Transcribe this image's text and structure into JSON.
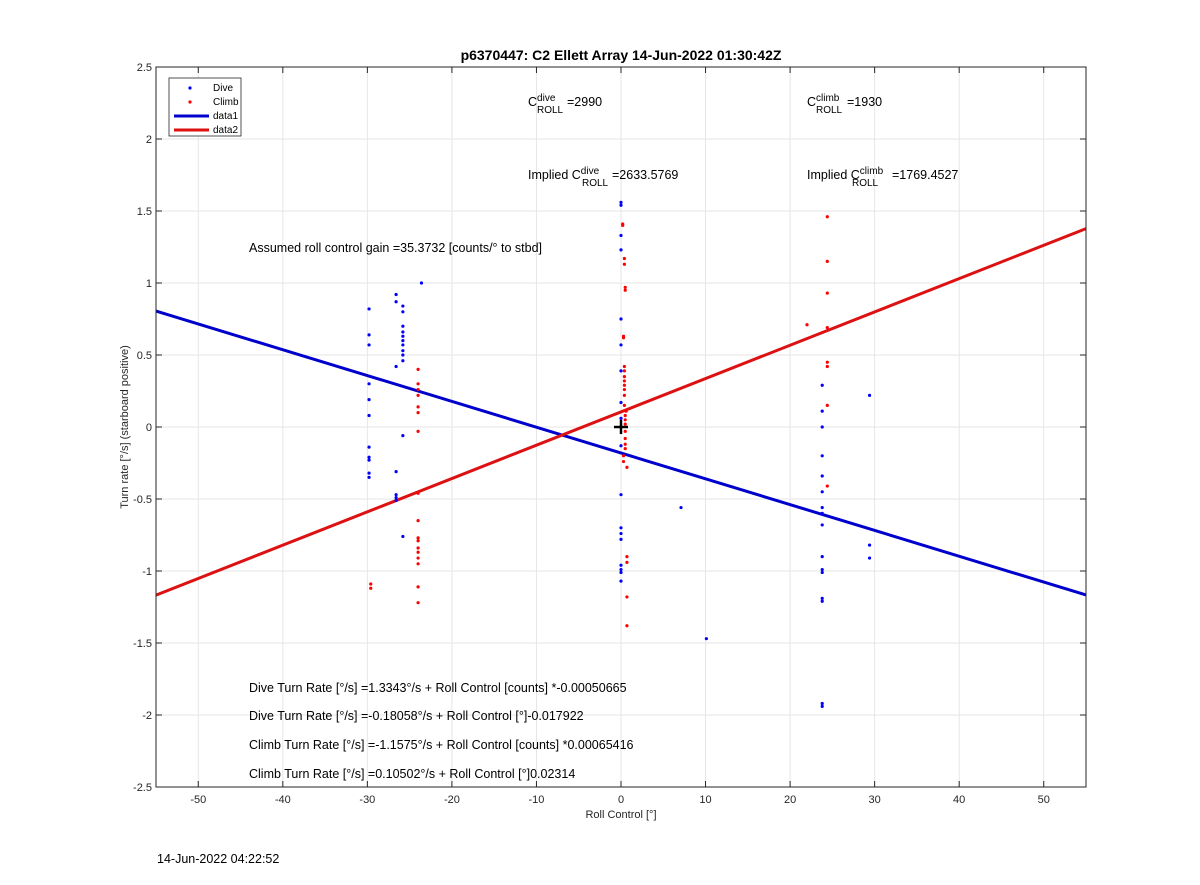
{
  "chart_data": {
    "type": "scatter",
    "title": "p6370447: C2 Ellett Array 14-Jun-2022 01:30:42Z",
    "xlabel": "Roll Control [°]",
    "ylabel": "Turn rate [°/s] (starboard positive)",
    "xlim": [
      -55,
      55
    ],
    "ylim": [
      -2.5,
      2.5
    ],
    "xticks": [
      -50,
      -40,
      -30,
      -20,
      -10,
      0,
      10,
      20,
      30,
      40,
      50
    ],
    "yticks": [
      -2.5,
      -2,
      -1.5,
      -1,
      -0.5,
      0,
      0.5,
      1,
      1.5,
      2,
      2.5
    ],
    "xtick_labels": [
      "-50",
      "-40",
      "-30",
      "-20",
      "-10",
      "0",
      "10",
      "20",
      "30",
      "40",
      "50"
    ],
    "ytick_labels": [
      "-2.5",
      "-2",
      "-1.5",
      "-1",
      "-0.5",
      "0",
      "0.5",
      "1",
      "1.5",
      "2",
      "2.5"
    ],
    "grid": true,
    "legend_position": "top-left",
    "series": [
      {
        "name": "Dive",
        "kind": "points",
        "color": "#0000ff",
        "points": [
          [
            -29.8,
            0.82
          ],
          [
            -29.8,
            0.64
          ],
          [
            -29.8,
            0.57
          ],
          [
            -29.8,
            0.3
          ],
          [
            -29.8,
            0.19
          ],
          [
            -29.8,
            0.08
          ],
          [
            -29.8,
            -0.14
          ],
          [
            -29.8,
            -0.21
          ],
          [
            -29.8,
            -0.23
          ],
          [
            -29.8,
            -0.32
          ],
          [
            -29.8,
            -0.35
          ],
          [
            -26.6,
            0.92
          ],
          [
            -26.6,
            0.87
          ],
          [
            -26.6,
            0.42
          ],
          [
            -26.6,
            -0.31
          ],
          [
            -26.6,
            -0.47
          ],
          [
            -26.6,
            -0.49
          ],
          [
            -26.6,
            -0.51
          ],
          [
            -25.8,
            0.84
          ],
          [
            -25.8,
            0.8
          ],
          [
            -25.8,
            0.7
          ],
          [
            -25.8,
            0.66
          ],
          [
            -25.8,
            0.63
          ],
          [
            -25.8,
            0.6
          ],
          [
            -25.8,
            0.57
          ],
          [
            -25.8,
            0.53
          ],
          [
            -25.8,
            0.5
          ],
          [
            -25.8,
            0.46
          ],
          [
            -25.8,
            -0.06
          ],
          [
            -25.8,
            -0.76
          ],
          [
            -23.6,
            1.0
          ],
          [
            0.0,
            1.56
          ],
          [
            0.0,
            1.54
          ],
          [
            0.0,
            1.33
          ],
          [
            0.0,
            1.23
          ],
          [
            0.0,
            0.75
          ],
          [
            0.0,
            0.57
          ],
          [
            0.0,
            0.39
          ],
          [
            0.0,
            0.17
          ],
          [
            0.0,
            0.06
          ],
          [
            0.0,
            -0.13
          ],
          [
            0.0,
            -0.47
          ],
          [
            0.0,
            -0.7
          ],
          [
            0.0,
            -0.74
          ],
          [
            0.0,
            -0.78
          ],
          [
            0.0,
            -0.96
          ],
          [
            0.0,
            -0.99
          ],
          [
            0.0,
            -1.01
          ],
          [
            0.0,
            -1.07
          ],
          [
            7.1,
            -0.56
          ],
          [
            10.1,
            -1.47
          ],
          [
            23.8,
            0.29
          ],
          [
            23.8,
            0.11
          ],
          [
            23.8,
            0.0
          ],
          [
            23.8,
            -0.2
          ],
          [
            23.8,
            -0.34
          ],
          [
            23.8,
            -0.45
          ],
          [
            23.8,
            -0.56
          ],
          [
            23.8,
            -0.6
          ],
          [
            23.8,
            -0.68
          ],
          [
            23.8,
            -0.9
          ],
          [
            23.8,
            -0.99
          ],
          [
            23.8,
            -1.01
          ],
          [
            23.8,
            -1.19
          ],
          [
            23.8,
            -1.21
          ],
          [
            23.8,
            -1.92
          ],
          [
            23.8,
            -1.94
          ],
          [
            29.4,
            0.22
          ],
          [
            29.4,
            -0.82
          ],
          [
            29.4,
            -0.91
          ]
        ]
      },
      {
        "name": "Climb",
        "kind": "points",
        "color": "#ff0000",
        "points": [
          [
            -29.6,
            -1.09
          ],
          [
            -29.6,
            -1.12
          ],
          [
            -24.0,
            0.4
          ],
          [
            -24.0,
            0.3
          ],
          [
            -24.0,
            0.26
          ],
          [
            -24.0,
            0.22
          ],
          [
            -24.0,
            0.14
          ],
          [
            -24.0,
            0.1
          ],
          [
            -24.0,
            -0.03
          ],
          [
            -24.0,
            -0.46
          ],
          [
            -24.0,
            -0.65
          ],
          [
            -24.0,
            -0.77
          ],
          [
            -24.0,
            -0.79
          ],
          [
            -24.0,
            -0.84
          ],
          [
            -24.0,
            -0.87
          ],
          [
            -24.0,
            -0.91
          ],
          [
            -24.0,
            -0.95
          ],
          [
            -24.0,
            -1.11
          ],
          [
            -24.0,
            -1.22
          ],
          [
            0.2,
            1.41
          ],
          [
            0.2,
            1.4
          ],
          [
            0.4,
            1.17
          ],
          [
            0.4,
            1.13
          ],
          [
            0.5,
            0.97
          ],
          [
            0.5,
            0.95
          ],
          [
            0.3,
            0.63
          ],
          [
            0.3,
            0.62
          ],
          [
            0.4,
            0.42
          ],
          [
            0.4,
            0.39
          ],
          [
            0.4,
            0.35
          ],
          [
            0.4,
            0.32
          ],
          [
            0.4,
            0.29
          ],
          [
            0.4,
            0.26
          ],
          [
            0.4,
            0.22
          ],
          [
            0.4,
            0.15
          ],
          [
            0.6,
            0.11
          ],
          [
            0.5,
            0.08
          ],
          [
            0.5,
            0.05
          ],
          [
            0.5,
            0.02
          ],
          [
            0.5,
            -0.03
          ],
          [
            0.5,
            -0.08
          ],
          [
            0.5,
            -0.12
          ],
          [
            0.5,
            -0.15
          ],
          [
            0.3,
            -0.2
          ],
          [
            0.3,
            -0.24
          ],
          [
            0.7,
            -0.28
          ],
          [
            0.7,
            -0.9
          ],
          [
            0.7,
            -0.94
          ],
          [
            0.7,
            -1.18
          ],
          [
            0.7,
            -1.38
          ],
          [
            22.0,
            0.71
          ],
          [
            24.4,
            1.46
          ],
          [
            24.4,
            1.15
          ],
          [
            24.4,
            0.93
          ],
          [
            24.4,
            0.69
          ],
          [
            24.4,
            0.45
          ],
          [
            24.4,
            0.42
          ],
          [
            24.4,
            0.15
          ],
          [
            24.4,
            -0.41
          ]
        ]
      },
      {
        "name": "data1",
        "kind": "line",
        "color": "#0000cc",
        "intercept": -0.18058,
        "slope": -0.017922
      },
      {
        "name": "data2",
        "kind": "line",
        "color": "#dd1111",
        "intercept": 0.10502,
        "slope": 0.02314
      }
    ],
    "marker": {
      "x": 0,
      "y": 0,
      "symbol": "+"
    }
  },
  "annotations": {
    "c_dive_base": "C",
    "c_dive_sup": "dive",
    "c_dive_sub": "ROLL",
    "c_dive_val": "=2990",
    "c_climb_base": "C",
    "c_climb_sup": "climb",
    "c_climb_sub": "ROLL",
    "c_climb_val": "=1930",
    "impl_dive_prefix": "Implied C",
    "impl_dive_sup": "dive",
    "impl_dive_sub": "ROLL",
    "impl_dive_val": "=2633.5769",
    "impl_climb_prefix": "Implied C",
    "impl_climb_sup": "climb",
    "impl_climb_sub": "ROLL",
    "impl_climb_val": "=1769.4527",
    "gain": "Assumed roll control gain =35.3732 [counts/° to stbd]",
    "eq1": "Dive Turn Rate [°/s] =1.3343°/s + Roll Control [counts] *-0.00050665",
    "eq2": "Dive Turn Rate [°/s] =-0.18058°/s + Roll Control [°]-0.017922",
    "eq3": "Climb Turn Rate [°/s] =-1.1575°/s + Roll Control [counts] *0.00065416",
    "eq4": "Climb Turn Rate [°/s] =0.10502°/s + Roll Control [°]0.02314"
  },
  "footer": {
    "timestamp": "14-Jun-2022 04:22:52"
  }
}
